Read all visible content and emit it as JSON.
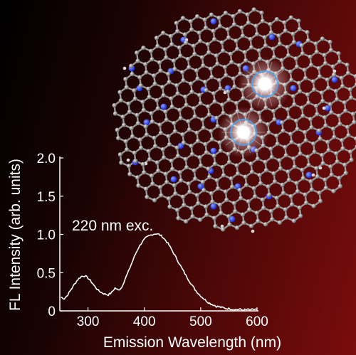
{
  "chart_data": {
    "type": "line",
    "xlabel": "Emission Wavelength (nm)",
    "ylabel": "FL Intensity (arb. units)",
    "xlim": [
      250,
      600
    ],
    "ylim": [
      0,
      2.0
    ],
    "xticks": [
      300,
      400,
      500,
      600
    ],
    "yticks": [
      0,
      0.5,
      1.0,
      1.5,
      2.0
    ],
    "ytick_labels": [
      "0",
      "0.5",
      "1.0",
      "1.5",
      "2.0"
    ],
    "annotation": "220 nm exc.",
    "series": [
      {
        "x": [
          252,
          258,
          264,
          270,
          276,
          282,
          288,
          294,
          300,
          306,
          312,
          318,
          324,
          330,
          336,
          342,
          348,
          354,
          360,
          366,
          372,
          378,
          384,
          390,
          396,
          402,
          408,
          414,
          420,
          426,
          432,
          438,
          444,
          450,
          456,
          462,
          468,
          474,
          480,
          486,
          492,
          498,
          504,
          510,
          516,
          522,
          528,
          534,
          540,
          546,
          552,
          558,
          564,
          570,
          576,
          582,
          588,
          594,
          600
        ],
        "y": [
          0.18,
          0.16,
          0.21,
          0.28,
          0.35,
          0.41,
          0.45,
          0.46,
          0.43,
          0.38,
          0.32,
          0.27,
          0.24,
          0.22,
          0.21,
          0.24,
          0.3,
          0.27,
          0.31,
          0.42,
          0.52,
          0.63,
          0.74,
          0.83,
          0.9,
          0.95,
          0.98,
          1.0,
          1.01,
          1.0,
          0.97,
          0.92,
          0.86,
          0.78,
          0.7,
          0.62,
          0.54,
          0.46,
          0.39,
          0.32,
          0.26,
          0.21,
          0.17,
          0.13,
          0.1,
          0.08,
          0.06,
          0.05,
          0.04,
          0.03,
          0.03,
          0.02,
          0.02,
          0.02,
          0.01,
          0.02,
          0.01,
          0.02,
          0.02
        ]
      }
    ]
  },
  "illustration": {
    "atom_color": "#8f8f8f",
    "nitrogen_color": "#1a33ff",
    "hydrogen_color": "#d9d9d9",
    "glow_color": "#ffffff",
    "ring_highlight_color": "#3fa8ff"
  }
}
